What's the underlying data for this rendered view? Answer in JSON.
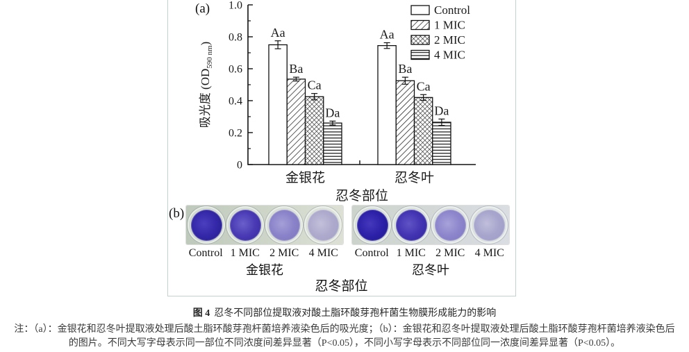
{
  "figure": {
    "panel_a_label": "(a)",
    "panel_b_label": "(b)"
  },
  "chart_data": {
    "type": "bar",
    "title": "",
    "xlabel": "忍冬部位",
    "ylabel_main": "吸光度 (OD",
    "ylabel_sub": "590 nm",
    "ylabel_end": ")",
    "ylim": [
      0,
      1.0
    ],
    "yticks": [
      0,
      0.2,
      0.4,
      0.6,
      0.8,
      1.0
    ],
    "ytick_labels": [
      "0",
      "0.2",
      "0.4",
      "0.6",
      "0.8",
      "1.0"
    ],
    "minor_tick_step": 0.1,
    "categories": [
      "金银花",
      "忍冬叶"
    ],
    "series": [
      {
        "name": "Control",
        "pattern": "none",
        "values": [
          0.75,
          0.745
        ],
        "errors": [
          0.025,
          0.018
        ],
        "sig_labels": [
          "Aa",
          "Aa"
        ]
      },
      {
        "name": "1 MIC",
        "pattern": "diagonal",
        "values": [
          0.535,
          0.525
        ],
        "errors": [
          0.012,
          0.022
        ],
        "sig_labels": [
          "Ba",
          "Ba"
        ]
      },
      {
        "name": "2 MIC",
        "pattern": "crosshatch",
        "values": [
          0.425,
          0.42
        ],
        "errors": [
          0.02,
          0.018
        ],
        "sig_labels": [
          "Ca",
          "Ca"
        ]
      },
      {
        "name": "4 MIC",
        "pattern": "horizontal",
        "values": [
          0.26,
          0.265
        ],
        "errors": [
          0.012,
          0.02
        ],
        "sig_labels": [
          "Da",
          "Da"
        ]
      }
    ],
    "legend_position": "top-right",
    "grid": false
  },
  "panel_b": {
    "axis_label": "忍冬部位",
    "plates": [
      {
        "name": "金银花",
        "bg_left": "#bec9bb",
        "bg_right": "#dde1d5",
        "wells": [
          {
            "label": "Control",
            "hi": "#4b3fc0",
            "mid": "#3428a8",
            "dark": "#241b8a"
          },
          {
            "label": "1 MIC",
            "hi": "#6a5fcb",
            "mid": "#4a3bb4",
            "dark": "#3326a0"
          },
          {
            "label": "2 MIC",
            "hi": "#a59fd8",
            "mid": "#8b83c9",
            "dark": "#7b74bd"
          },
          {
            "label": "4 MIC",
            "hi": "#c2c0da",
            "mid": "#adaacd",
            "dark": "#a19fc4"
          }
        ]
      },
      {
        "name": "忍冬叶",
        "bg_left": "#ccd3cb",
        "bg_right": "#dadde2",
        "wells": [
          {
            "label": "Control",
            "hi": "#4538bd",
            "mid": "#2c21a8",
            "dark": "#1f1790"
          },
          {
            "label": "1 MIC",
            "hi": "#5f53c6",
            "mid": "#4335b2",
            "dark": "#2f239e"
          },
          {
            "label": "2 MIC",
            "hi": "#a7a2da",
            "mid": "#8d86cc",
            "dark": "#7d76c0"
          },
          {
            "label": "4 MIC",
            "hi": "#c0bedb",
            "mid": "#a8a5cd",
            "dark": "#9b99c5"
          }
        ]
      }
    ]
  },
  "caption": {
    "figure_label": "图 4",
    "title": "忍冬不同部位提取液对酸土脂环酸芽孢杆菌生物膜形成能力的影响"
  },
  "notes": {
    "line1": "注：（a）：金银花和忍冬叶提取液处理后酸土脂环酸芽孢杆菌培养液染色后的吸光度；（b）：金银花和忍冬叶提取液处理后酸土脂环酸芽孢杆菌培养液染色后",
    "line2": "的图片。不同大写字母表示同一部位不同浓度间差异显著（P<0.05），不同小写字母表示不同部位同一浓度间差异显著（P<0.05）。"
  },
  "colors": {
    "panel_border": "#c3d2cf",
    "axis": "#111111",
    "text": "#1a1a1a",
    "note_text": "#3a3a3a"
  }
}
